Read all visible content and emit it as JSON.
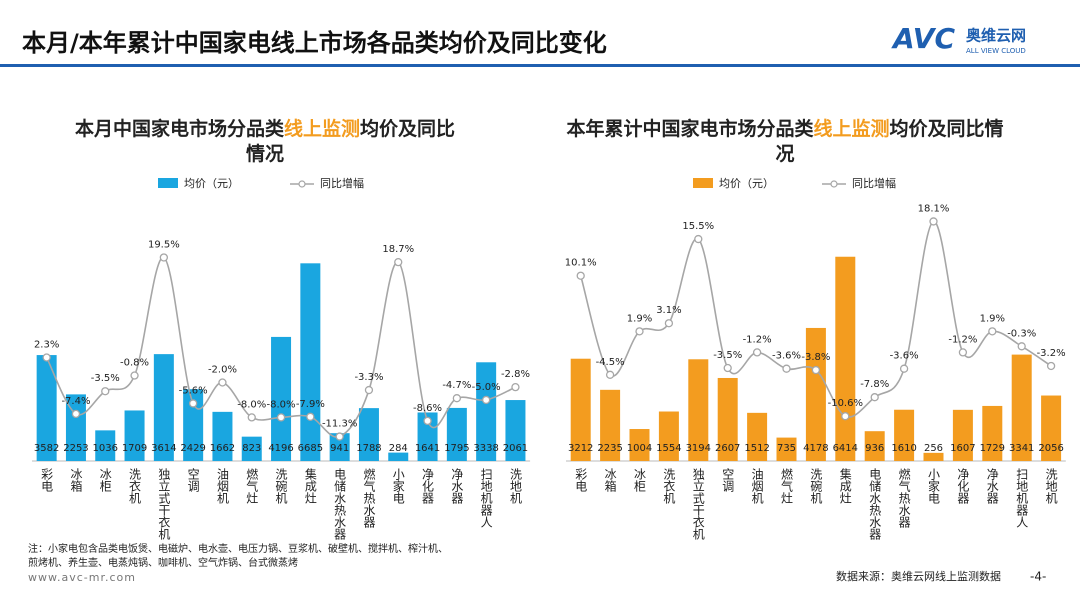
{
  "header": {
    "title": "本月/本年累计中国家电线上市场各品类均价及同比变化",
    "logo": "AVC",
    "logo_cn": "奥维云网",
    "logo_en": "ALL VIEW CLOUD"
  },
  "chart_data": [
    {
      "type": "bar_line",
      "title": [
        "本月中国家电市场分品类",
        "线上监测",
        "均价及同比情况"
      ],
      "categories": [
        "彩电",
        "冰箱",
        "冰柜",
        "洗衣机",
        "独立式干衣机",
        "空调",
        "油烟机",
        "燃气灶",
        "洗碗机",
        "集成灶",
        "电储水热水器",
        "燃气热水器",
        "小家电",
        "净化器",
        "净水器",
        "扫地机器人",
        "洗地机"
      ],
      "ylim": [
        0,
        7000
      ],
      "y2lim": [
        -15.5,
        20.1
      ],
      "series": [
        {
          "name": "均价（元）",
          "color": "#1aa6e0",
          "values": [
            3582,
            2253,
            1036,
            1709,
            3614,
            2429,
            1662,
            823,
            4196,
            6685,
            941,
            1788,
            284,
            1641,
            1795,
            3338,
            2061
          ]
        },
        {
          "name": "同比增幅",
          "color": "#a6a6a6",
          "axis": "y2",
          "values": [
            2.3,
            -7.4,
            -3.5,
            -0.8,
            19.5,
            -5.6,
            -2.0,
            -8.0,
            -8.0,
            -7.9,
            -11.3,
            -3.3,
            18.7,
            -8.6,
            -4.7,
            -5.0,
            -2.8
          ],
          "value_labels": [
            "2.3%",
            "-7.4%",
            "-3.5%",
            "-0.8%",
            "19.5%",
            "-5.6%",
            "-2.0%",
            "-8.0%",
            "-8.0%",
            "-7.9%",
            "-11.3%",
            "-3.3%",
            "18.7%",
            "-8.6%",
            "-4.7%",
            "-5.0%",
            "-2.8%"
          ]
        }
      ]
    },
    {
      "type": "bar_line",
      "title": [
        "本年累计中国家电市场分品类",
        "线上监测",
        "均价及同比情况"
      ],
      "categories": [
        "彩电",
        "冰箱",
        "冰柜",
        "洗衣机",
        "独立式干衣机",
        "空调",
        "油烟机",
        "燃气灶",
        "洗碗机",
        "集成灶",
        "电储水热水器",
        "燃气热水器",
        "小家电",
        "净化器",
        "净水器",
        "扫地机器人",
        "洗地机"
      ],
      "ylim": [
        0,
        6500
      ],
      "y2lim": [
        -17.2,
        13.3
      ],
      "series": [
        {
          "name": "均价（元）",
          "color": "#f39c1f",
          "values": [
            3212,
            2235,
            1004,
            1554,
            3194,
            2607,
            1512,
            735,
            4178,
            6414,
            936,
            1610,
            256,
            1607,
            1729,
            3341,
            2056
          ]
        },
        {
          "name": "同比增幅",
          "color": "#a6a6a6",
          "axis": "y2",
          "values": [
            10.1,
            -4.5,
            1.9,
            3.1,
            15.5,
            -3.5,
            -1.2,
            -3.6,
            -3.8,
            -10.6,
            -7.8,
            -3.6,
            18.1,
            -1.2,
            1.9,
            -0.3,
            -3.2
          ],
          "value_labels": [
            "10.1%",
            "-4.5%",
            "1.9%",
            "3.1%",
            "15.5%",
            "-3.5%",
            "-1.2%",
            "-3.6%",
            "-3.8%",
            "-10.6%",
            "-7.8%",
            "-3.6%",
            "18.1%",
            "-1.2%",
            "1.9%",
            "-0.3%",
            "-3.2%"
          ]
        }
      ]
    }
  ],
  "note": [
    "注：小家电包含品类电饭煲、电磁炉、电水壶、电压力锅、豆浆机、破壁机、搅拌机、榨汁机、",
    "煎烤机、养生壶、电蒸炖锅、咖啡机、空气炸锅、台式微蒸烤"
  ],
  "footer": {
    "url": "www.avc-mr.com",
    "source": "数据来源：奥维云网线上监测数据",
    "page": "-4-"
  }
}
